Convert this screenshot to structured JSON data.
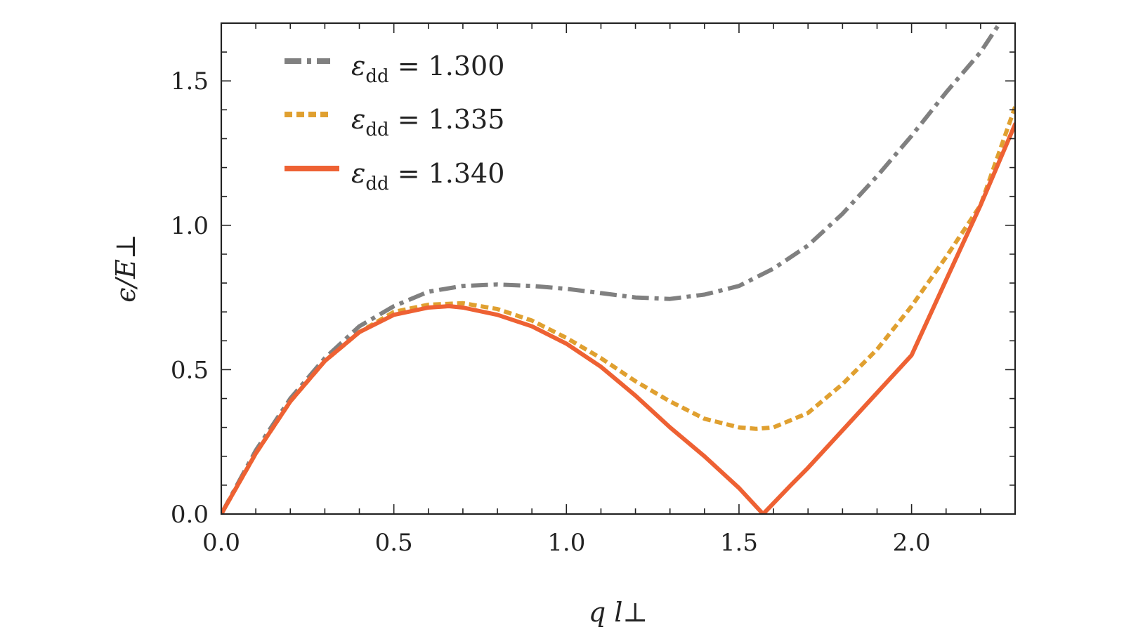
{
  "chart_data": {
    "type": "line",
    "title": "",
    "xlabel": "q l⊥",
    "ylabel": "ϵ/E⊥",
    "xlim": [
      0.0,
      2.3
    ],
    "ylim": [
      0.0,
      1.7
    ],
    "x_ticks": [
      "0.0",
      "0.5",
      "1.0",
      "1.5",
      "2.0"
    ],
    "y_ticks": [
      "0.0",
      "0.5",
      "1.0",
      "1.5"
    ],
    "grid": false,
    "legend_position": "top-left",
    "series": [
      {
        "name": "εdd = 1.300",
        "legend_symbol": "ε",
        "legend_subscript": "dd",
        "legend_value": "= 1.300",
        "color": "#808080",
        "style": "dashdot",
        "x": [
          0.0,
          0.1,
          0.2,
          0.3,
          0.4,
          0.5,
          0.6,
          0.7,
          0.8,
          0.9,
          1.0,
          1.1,
          1.2,
          1.3,
          1.4,
          1.5,
          1.6,
          1.7,
          1.8,
          1.9,
          2.0,
          2.1,
          2.2,
          2.25
        ],
        "y": [
          0.0,
          0.22,
          0.4,
          0.54,
          0.65,
          0.72,
          0.77,
          0.79,
          0.795,
          0.79,
          0.78,
          0.765,
          0.75,
          0.745,
          0.76,
          0.79,
          0.85,
          0.93,
          1.04,
          1.17,
          1.31,
          1.46,
          1.6,
          1.69
        ]
      },
      {
        "name": "εdd = 1.335",
        "legend_symbol": "ε",
        "legend_subscript": "dd",
        "legend_value": "= 1.335",
        "color": "#E0A030",
        "style": "dotted",
        "x": [
          0.0,
          0.1,
          0.2,
          0.3,
          0.4,
          0.5,
          0.6,
          0.7,
          0.8,
          0.9,
          1.0,
          1.1,
          1.2,
          1.3,
          1.4,
          1.5,
          1.55,
          1.6,
          1.7,
          1.8,
          1.9,
          2.0,
          2.1,
          2.2,
          2.3
        ],
        "y": [
          0.0,
          0.21,
          0.39,
          0.53,
          0.63,
          0.7,
          0.725,
          0.73,
          0.71,
          0.67,
          0.61,
          0.54,
          0.46,
          0.39,
          0.33,
          0.3,
          0.295,
          0.3,
          0.35,
          0.45,
          0.57,
          0.72,
          0.89,
          1.07,
          1.41
        ]
      },
      {
        "name": "εdd = 1.340",
        "legend_symbol": "ε",
        "legend_subscript": "dd",
        "legend_value": "= 1.340",
        "color": "#EE6133",
        "style": "solid",
        "x": [
          0.0,
          0.1,
          0.2,
          0.3,
          0.4,
          0.5,
          0.6,
          0.66,
          0.7,
          0.8,
          0.9,
          1.0,
          1.1,
          1.2,
          1.3,
          1.4,
          1.5,
          1.57,
          1.65,
          1.7,
          1.8,
          1.9,
          2.0,
          2.1,
          2.2,
          2.3
        ],
        "y": [
          0.0,
          0.21,
          0.39,
          0.53,
          0.63,
          0.69,
          0.715,
          0.72,
          0.715,
          0.69,
          0.65,
          0.59,
          0.51,
          0.41,
          0.3,
          0.2,
          0.09,
          0.0,
          0.1,
          0.16,
          0.29,
          0.42,
          0.55,
          0.81,
          1.07,
          1.35
        ]
      }
    ]
  }
}
